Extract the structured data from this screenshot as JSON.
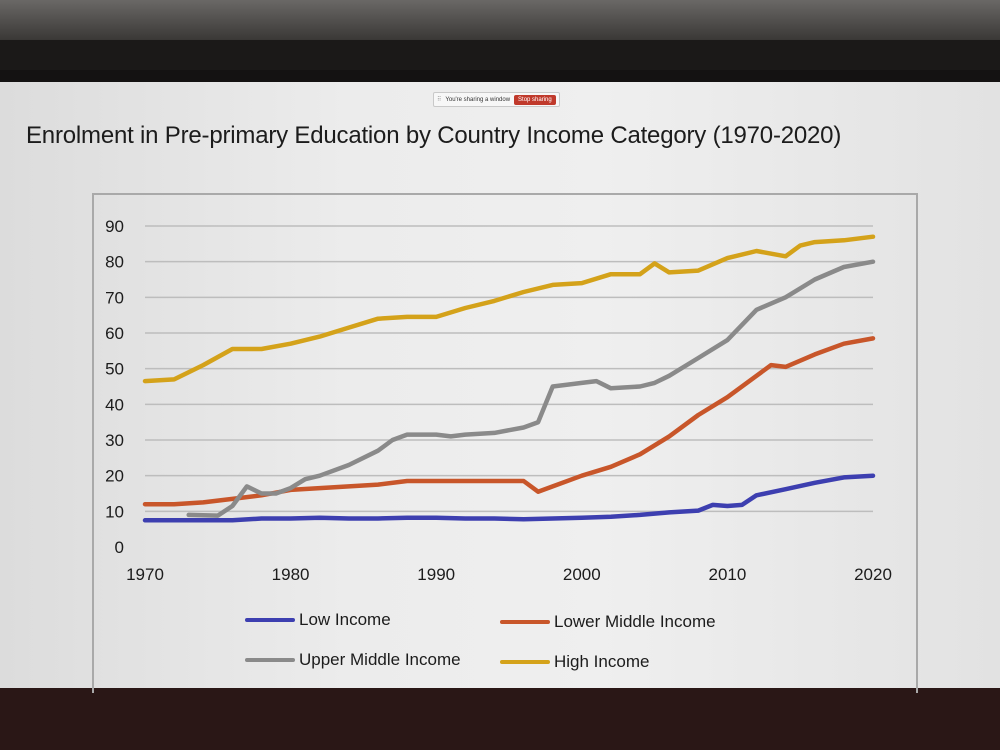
{
  "share_bar": {
    "message": "You're sharing a window",
    "stop_label": "Stop sharing"
  },
  "chart_data": {
    "type": "line",
    "title": "Enrolment in Pre-primary Education by Country Income Category (1970-2020)",
    "xlabel": "",
    "ylabel": "",
    "xlim": [
      1970,
      2020
    ],
    "ylim": [
      0,
      90
    ],
    "x_ticks": [
      1970,
      1980,
      1990,
      2000,
      2010,
      2020
    ],
    "y_ticks": [
      0,
      10,
      20,
      30,
      40,
      50,
      60,
      70,
      80,
      90
    ],
    "grid": true,
    "legend_position": "bottom",
    "series": [
      {
        "name": "Low Income",
        "color": "#3d3fb0",
        "x": [
          1970,
          1972,
          1974,
          1976,
          1978,
          1980,
          1982,
          1984,
          1986,
          1988,
          1990,
          1992,
          1994,
          1996,
          1998,
          2000,
          2002,
          2004,
          2006,
          2008,
          2009,
          2010,
          2011,
          2012,
          2014,
          2016,
          2018,
          2020
        ],
        "y": [
          7.5,
          7.5,
          7.5,
          7.5,
          8,
          8,
          8.2,
          8,
          8,
          8.2,
          8.2,
          8,
          8,
          7.8,
          8,
          8.2,
          8.5,
          9,
          9.7,
          10.2,
          11.8,
          11.5,
          11.8,
          14.5,
          16.2,
          18,
          19.5,
          20
        ]
      },
      {
        "name": "Lower Middle Income",
        "color": "#c8562a",
        "x": [
          1970,
          1972,
          1974,
          1976,
          1978,
          1980,
          1982,
          1984,
          1986,
          1988,
          1990,
          1992,
          1994,
          1996,
          1997,
          1998,
          2000,
          2002,
          2004,
          2006,
          2008,
          2010,
          2012,
          2013,
          2014,
          2016,
          2018,
          2020
        ],
        "y": [
          12,
          12,
          12.5,
          13.5,
          14.5,
          16,
          16.5,
          17,
          17.5,
          18.5,
          18.5,
          18.5,
          18.5,
          18.5,
          15.5,
          17,
          20,
          22.5,
          26,
          31,
          37,
          42,
          48,
          51,
          50.5,
          54,
          57,
          58.5
        ]
      },
      {
        "name": "Upper Middle Income",
        "color": "#8a8a8a",
        "x": [
          1973,
          1975,
          1976,
          1977,
          1978,
          1979,
          1980,
          1981,
          1982,
          1984,
          1986,
          1987,
          1988,
          1990,
          1991,
          1992,
          1994,
          1996,
          1997,
          1998,
          2000,
          2001,
          2002,
          2004,
          2005,
          2006,
          2008,
          2010,
          2012,
          2014,
          2016,
          2018,
          2020
        ],
        "y": [
          9,
          8.8,
          11.5,
          17,
          15,
          15,
          16.5,
          19,
          20,
          23,
          27,
          30,
          31.5,
          31.5,
          31,
          31.5,
          32,
          33.5,
          35,
          45,
          46,
          46.5,
          44.5,
          45,
          46,
          48,
          53,
          58,
          66.5,
          70,
          75,
          78.5,
          80
        ]
      },
      {
        "name": "High Income",
        "color": "#d4a21a",
        "x": [
          1970,
          1972,
          1974,
          1976,
          1978,
          1980,
          1982,
          1984,
          1986,
          1988,
          1990,
          1992,
          1994,
          1996,
          1998,
          2000,
          2002,
          2004,
          2005,
          2006,
          2008,
          2010,
          2012,
          2014,
          2015,
          2016,
          2018,
          2020
        ],
        "y": [
          46.5,
          47,
          51,
          55.5,
          55.5,
          57,
          59,
          61.5,
          64,
          64.5,
          64.5,
          67,
          69,
          71.5,
          73.5,
          74,
          76.5,
          76.5,
          79.5,
          77,
          77.5,
          81,
          83,
          81.5,
          84.5,
          85.5,
          86,
          87
        ]
      }
    ]
  }
}
